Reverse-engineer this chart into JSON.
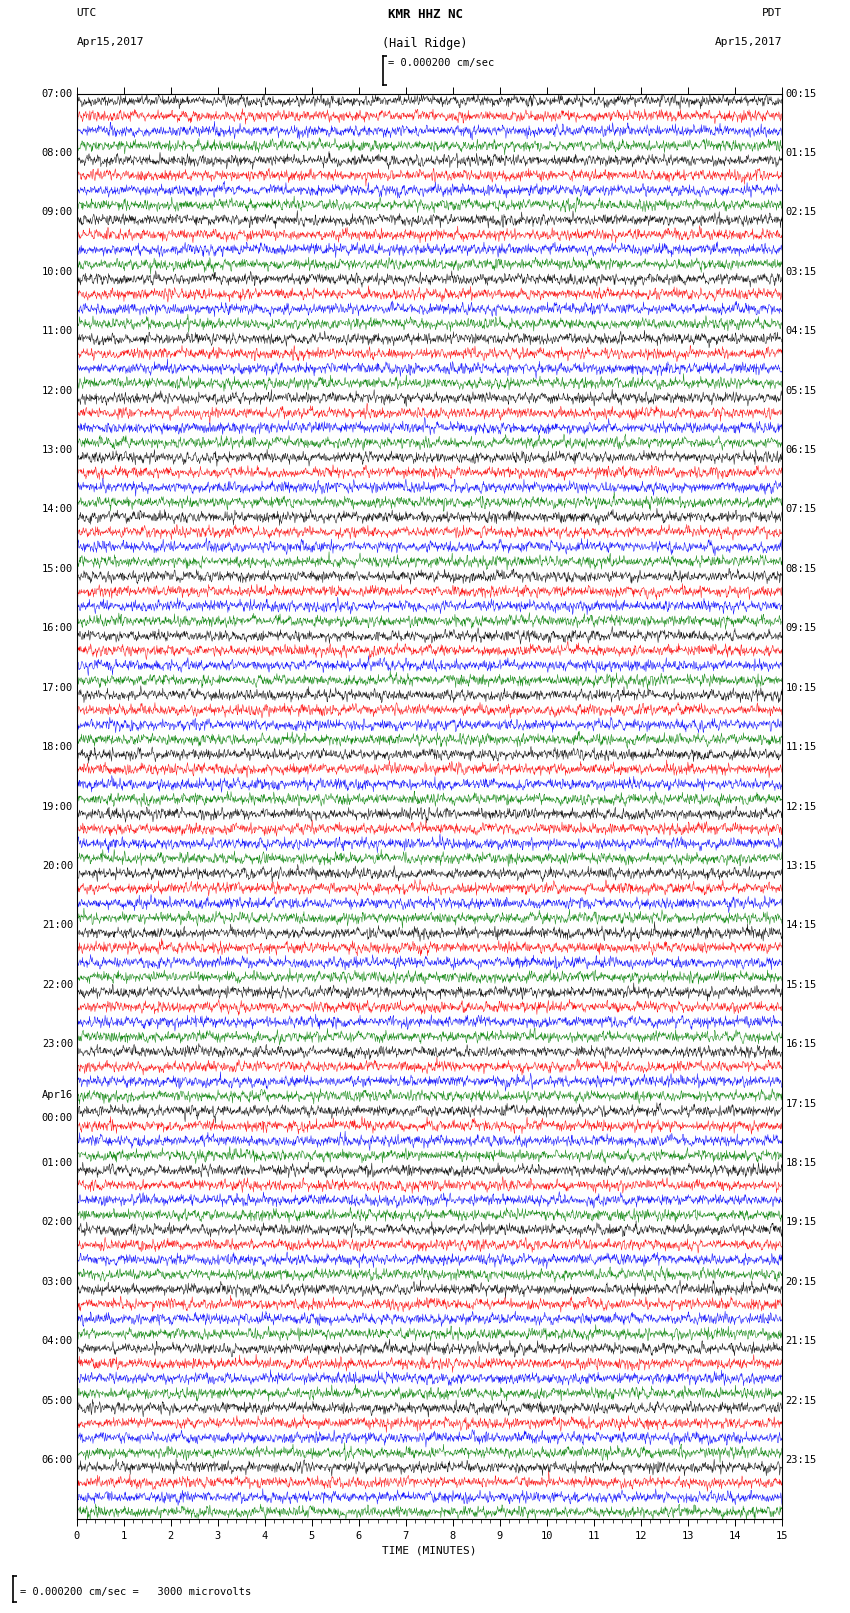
{
  "title_line1": "KMR HHZ NC",
  "title_line2": "(Hail Ridge)",
  "scale_label": "= 0.000200 cm/sec",
  "bottom_label": "= 0.000200 cm/sec =   3000 microvolts",
  "left_header_line1": "UTC",
  "left_header_line2": "Apr15,2017",
  "right_header_line1": "PDT",
  "right_header_line2": "Apr15,2017",
  "xlabel": "TIME (MINUTES)",
  "n_rows": 96,
  "trace_colors": [
    "black",
    "red",
    "blue",
    "green"
  ],
  "traces_per_hour": 4,
  "background_color": "white",
  "left_time_labels": [
    "07:00",
    "",
    "",
    "",
    "08:00",
    "",
    "",
    "",
    "09:00",
    "",
    "",
    "",
    "10:00",
    "",
    "",
    "",
    "11:00",
    "",
    "",
    "",
    "12:00",
    "",
    "",
    "",
    "13:00",
    "",
    "",
    "",
    "14:00",
    "",
    "",
    "",
    "15:00",
    "",
    "",
    "",
    "16:00",
    "",
    "",
    "",
    "17:00",
    "",
    "",
    "",
    "18:00",
    "",
    "",
    "",
    "19:00",
    "",
    "",
    "",
    "20:00",
    "",
    "",
    "",
    "21:00",
    "",
    "",
    "",
    "22:00",
    "",
    "",
    "",
    "23:00",
    "",
    "",
    "",
    "Apr16",
    "00:00",
    "",
    "",
    "01:00",
    "",
    "",
    "",
    "02:00",
    "",
    "",
    "",
    "03:00",
    "",
    "",
    "",
    "04:00",
    "",
    "",
    "",
    "05:00",
    "",
    "",
    "",
    "06:00",
    "",
    "",
    ""
  ],
  "right_time_labels": [
    "00:15",
    "",
    "",
    "",
    "01:15",
    "",
    "",
    "",
    "02:15",
    "",
    "",
    "",
    "03:15",
    "",
    "",
    "",
    "04:15",
    "",
    "",
    "",
    "05:15",
    "",
    "",
    "",
    "06:15",
    "",
    "",
    "",
    "07:15",
    "",
    "",
    "",
    "08:15",
    "",
    "",
    "",
    "09:15",
    "",
    "",
    "",
    "10:15",
    "",
    "",
    "",
    "11:15",
    "",
    "",
    "",
    "12:15",
    "",
    "",
    "",
    "13:15",
    "",
    "",
    "",
    "14:15",
    "",
    "",
    "",
    "15:15",
    "",
    "",
    "",
    "16:15",
    "",
    "",
    "",
    "17:15",
    "",
    "",
    "",
    "18:15",
    "",
    "",
    "",
    "19:15",
    "",
    "",
    "",
    "20:15",
    "",
    "",
    "",
    "21:15",
    "",
    "",
    "",
    "22:15",
    "",
    "",
    "",
    "23:15",
    "",
    "",
    ""
  ],
  "xmin": 0,
  "xmax": 15,
  "xticks": [
    0,
    1,
    2,
    3,
    4,
    5,
    6,
    7,
    8,
    9,
    10,
    11,
    12,
    13,
    14,
    15
  ],
  "noise_seed": 42,
  "trace_amplitude": 0.38,
  "fig_width": 8.5,
  "fig_height": 16.13,
  "dpi": 100
}
